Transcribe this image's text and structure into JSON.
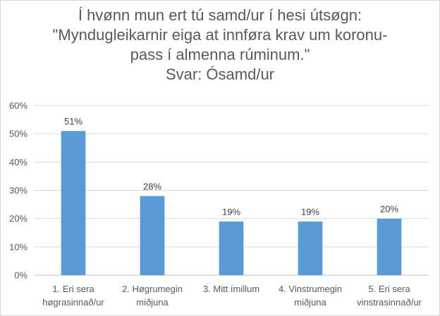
{
  "chart_data": {
    "type": "bar",
    "title_lines": [
      "Í hvønn mun ert tú samd/ur í hesi útsøgn:",
      "\"Myndugleikarnir eiga at innføra krav um koronu-",
      "pass í almenna rúminum.\"",
      "Svar: Ósamd/ur"
    ],
    "categories": [
      [
        "1. Eri sera",
        "høgrasinnað/ur"
      ],
      [
        "2. Høgrumegin",
        "miðjuna"
      ],
      [
        "3. Mitt ímillum"
      ],
      [
        "4. Vinstrumegin",
        "miðjuna"
      ],
      [
        "5. Eri sera",
        "vinstrasinnað/ur"
      ]
    ],
    "values": [
      0.51,
      0.28,
      0.19,
      0.19,
      0.2
    ],
    "data_labels": [
      "51%",
      "28%",
      "19%",
      "19%",
      "20%"
    ],
    "ylim": [
      0,
      0.6
    ],
    "yticks": [
      "0%",
      "10%",
      "20%",
      "30%",
      "40%",
      "50%",
      "60%"
    ],
    "grid": true,
    "bar_color": "#5b9bd5",
    "grid_color": "#d9d9d9"
  }
}
